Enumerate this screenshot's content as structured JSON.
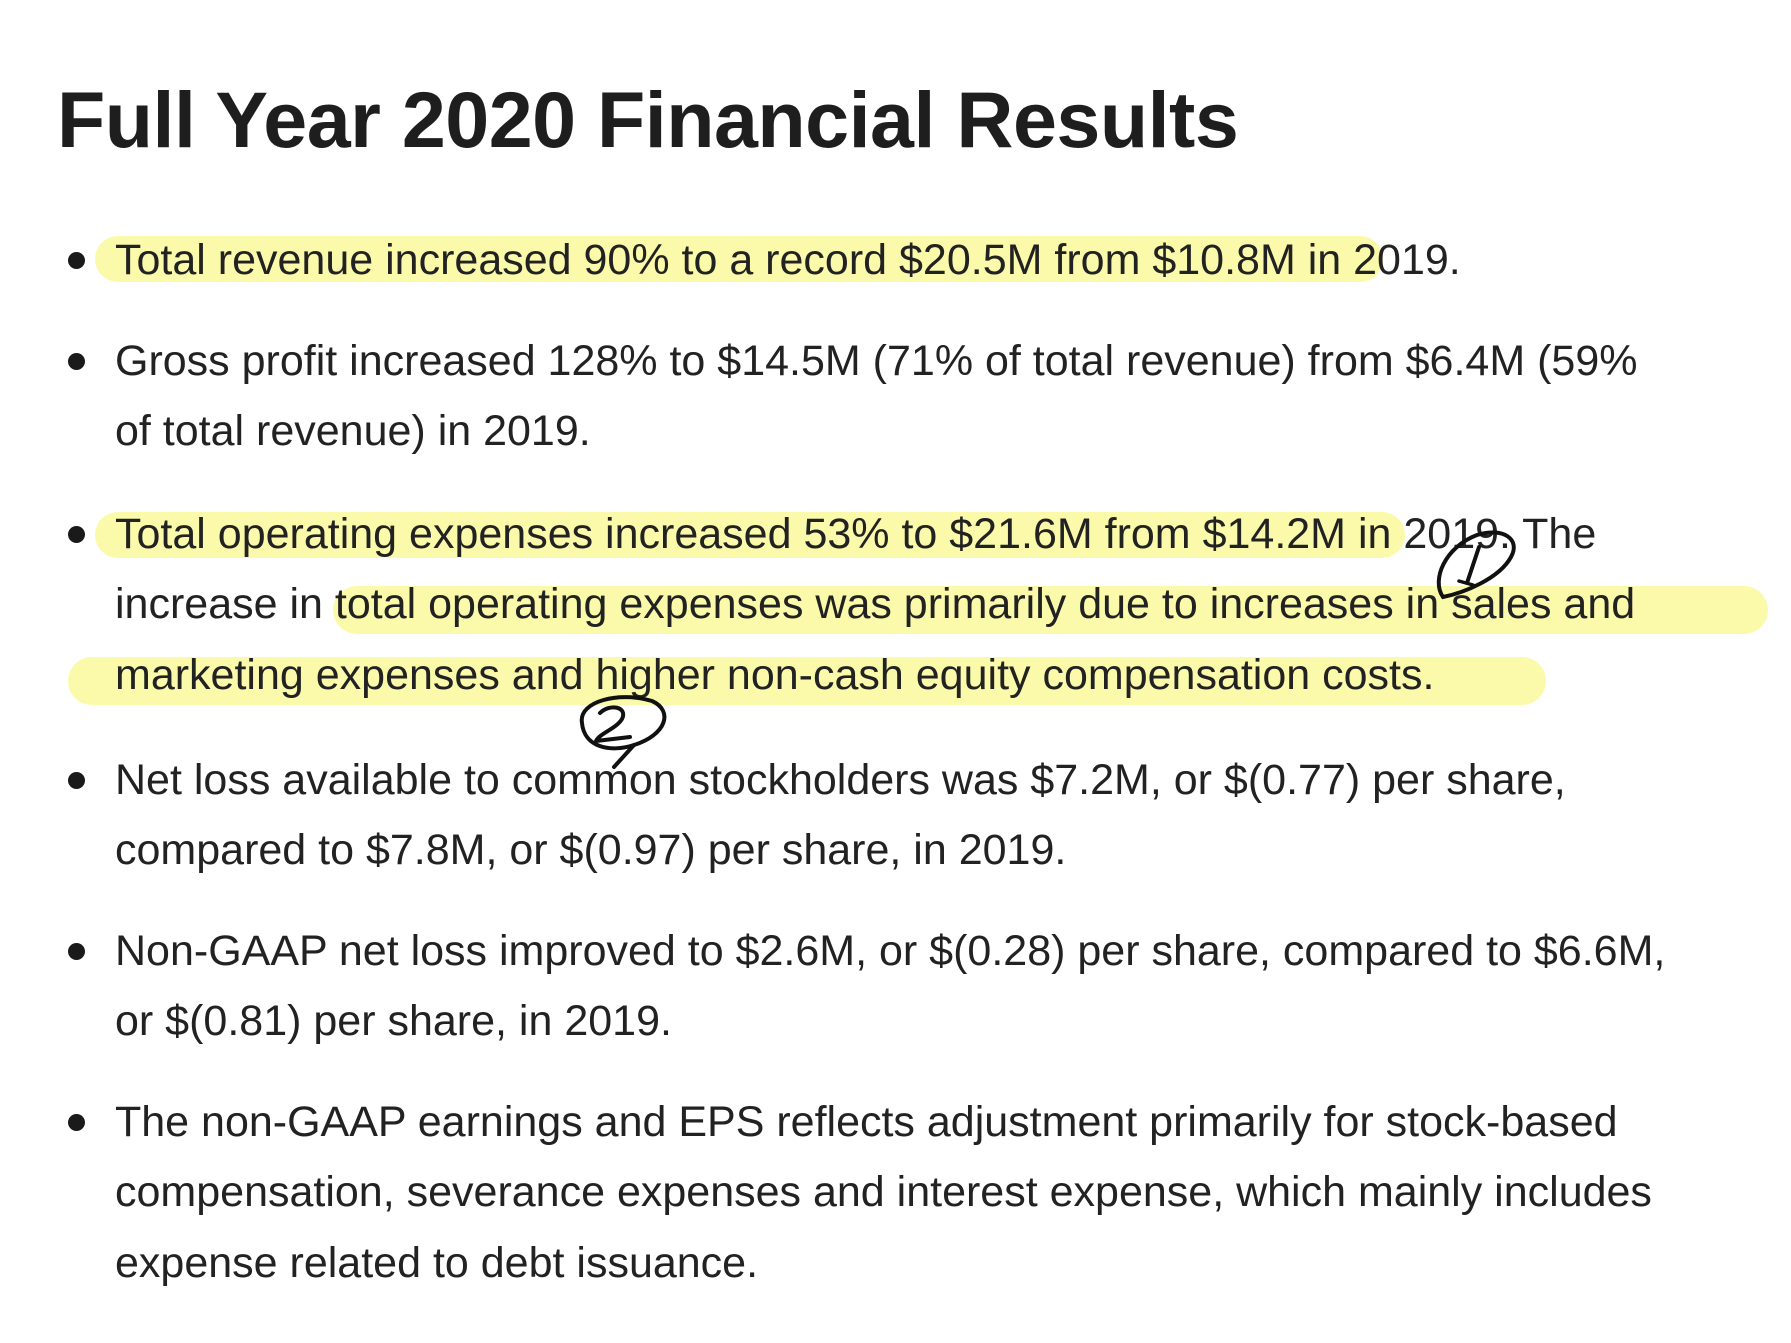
{
  "document": {
    "title": "Full Year 2020 Financial Results",
    "bullets": [
      {
        "lines": [
          "Total revenue increased 90% to a record $20.5M from $10.8M in 2019."
        ]
      },
      {
        "lines": [
          "Gross profit increased 128% to $14.5M (71% of total revenue) from $6.4M (59%",
          "of total revenue) in 2019."
        ]
      },
      {
        "lines": [
          "Total operating expenses increased 53% to $21.6M from $14.2M in 2019. The",
          "increase in total operating expenses was primarily due to increases in sales and",
          "marketing expenses and higher non-cash equity compensation costs."
        ]
      },
      {
        "lines": [
          "Net loss available to common stockholders was $7.2M, or $(0.77) per share,",
          "compared to $7.8M, or $(0.97) per share, in 2019."
        ]
      },
      {
        "lines": [
          "Non-GAAP net loss improved to $2.6M, or $(0.28) per share, compared to $6.6M,",
          "or $(0.81) per share, in 2019."
        ]
      },
      {
        "lines": [
          "The non-GAAP earnings and EPS reflects adjustment primarily for stock-based",
          "compensation, severance expenses and interest expense, which mainly includes",
          "expense related to debt issuance."
        ]
      }
    ]
  },
  "annotations": {
    "highlight_color": "#fbfaa6",
    "markers": [
      "1",
      "2"
    ]
  }
}
